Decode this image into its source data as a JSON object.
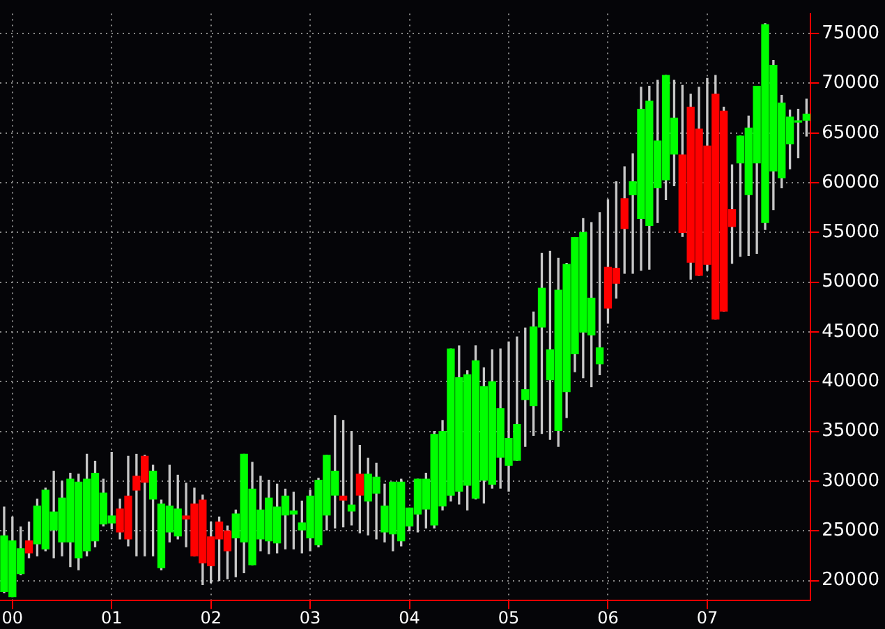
{
  "chart_data": {
    "type": "candlestick",
    "categories": [
      null,
      "00",
      null,
      null,
      null,
      null,
      null,
      null,
      null,
      null,
      null,
      null,
      null,
      "01",
      null,
      null,
      null,
      null,
      null,
      null,
      null,
      null,
      null,
      null,
      null,
      "02",
      null,
      null,
      null,
      null,
      null,
      null,
      null,
      null,
      null,
      null,
      null,
      "03",
      null,
      null,
      null,
      null,
      null,
      null,
      null,
      null,
      null,
      null,
      null,
      "04",
      null,
      null,
      null,
      null,
      null,
      null,
      null,
      null,
      null,
      null,
      null,
      "05",
      null,
      null,
      null,
      null,
      null,
      null,
      null,
      null,
      null,
      null,
      null,
      "06",
      null,
      null,
      null,
      null,
      null,
      null,
      null,
      null,
      null,
      null,
      null,
      "07",
      null,
      null,
      null,
      null,
      null,
      null,
      null,
      null,
      null,
      null,
      null,
      null
    ],
    "ohlc": [
      [
        18900,
        27400,
        18800,
        24500
      ],
      [
        18400,
        26400,
        18400,
        24000
      ],
      [
        20700,
        25400,
        20600,
        23200
      ],
      [
        24000,
        25900,
        22300,
        22800
      ],
      [
        23700,
        28200,
        22500,
        27500
      ],
      [
        23200,
        29300,
        23000,
        29100
      ],
      [
        25100,
        31000,
        22300,
        26900
      ],
      [
        23900,
        30000,
        22500,
        28300
      ],
      [
        23900,
        30800,
        21400,
        30200
      ],
      [
        22300,
        30700,
        21100,
        29900
      ],
      [
        23000,
        32700,
        22500,
        30200
      ],
      [
        24000,
        32000,
        23400,
        30800
      ],
      [
        25700,
        30200,
        25500,
        28800
      ],
      [
        25800,
        32900,
        25200,
        26500
      ],
      [
        27200,
        28200,
        24200,
        24900
      ],
      [
        28500,
        32500,
        23500,
        24200
      ],
      [
        30500,
        32700,
        22500,
        29100
      ],
      [
        32500,
        32600,
        22500,
        29900
      ],
      [
        28200,
        31600,
        22500,
        31000
      ],
      [
        21300,
        28100,
        21100,
        27700
      ],
      [
        24900,
        31600,
        23900,
        27500
      ],
      [
        24500,
        30600,
        24200,
        27200
      ],
      [
        26500,
        29800,
        23400,
        26200
      ],
      [
        27700,
        29300,
        22500,
        22500
      ],
      [
        28100,
        28600,
        19600,
        21800
      ],
      [
        24400,
        25900,
        19800,
        21500
      ],
      [
        25900,
        26400,
        20000,
        24200
      ],
      [
        25000,
        25500,
        20200,
        23000
      ],
      [
        24300,
        27100,
        20400,
        26700
      ],
      [
        23900,
        32700,
        20800,
        32700
      ],
      [
        21600,
        31900,
        21600,
        29200
      ],
      [
        24200,
        30500,
        23000,
        27100
      ],
      [
        24000,
        30100,
        22700,
        28300
      ],
      [
        23800,
        29700,
        22800,
        27400
      ],
      [
        26600,
        29200,
        23200,
        28500
      ],
      [
        26700,
        28900,
        23200,
        27000
      ],
      [
        25100,
        28000,
        22800,
        25800
      ],
      [
        24300,
        29100,
        23000,
        28500
      ],
      [
        23600,
        30300,
        23400,
        30100
      ],
      [
        26600,
        32600,
        25100,
        32600
      ],
      [
        28600,
        36600,
        25300,
        31000
      ],
      [
        28500,
        36100,
        25400,
        28100
      ],
      [
        27000,
        35000,
        25600,
        27600
      ],
      [
        30700,
        33600,
        24800,
        28600
      ],
      [
        28000,
        32300,
        24600,
        30700
      ],
      [
        28800,
        31800,
        24200,
        30400
      ],
      [
        24900,
        29700,
        23900,
        27500
      ],
      [
        24700,
        29900,
        23000,
        29900
      ],
      [
        24000,
        30200,
        23500,
        29900
      ],
      [
        25500,
        27300,
        25000,
        27300
      ],
      [
        26700,
        30200,
        24900,
        30200
      ],
      [
        27200,
        30800,
        25300,
        30200
      ],
      [
        25600,
        35000,
        25300,
        34700
      ],
      [
        27500,
        36100,
        27100,
        35000
      ],
      [
        28600,
        43300,
        28000,
        43300
      ],
      [
        29000,
        43600,
        27700,
        40400
      ],
      [
        29600,
        41100,
        27100,
        40700
      ],
      [
        28300,
        43600,
        28200,
        42100
      ],
      [
        30100,
        41400,
        27800,
        39500
      ],
      [
        29700,
        43200,
        29300,
        40000
      ],
      [
        32400,
        43300,
        29300,
        37300
      ],
      [
        31600,
        44000,
        29000,
        34300
      ],
      [
        32100,
        44500,
        32100,
        35700
      ],
      [
        38200,
        45400,
        33500,
        39200
      ],
      [
        37600,
        47000,
        34600,
        45500
      ],
      [
        45500,
        52900,
        34800,
        49400
      ],
      [
        40200,
        53100,
        34200,
        43200
      ],
      [
        35100,
        52400,
        33500,
        49200
      ],
      [
        39000,
        51900,
        36400,
        51800
      ],
      [
        42800,
        54500,
        41000,
        54500
      ],
      [
        45000,
        56400,
        40400,
        55000
      ],
      [
        44700,
        56000,
        39500,
        48400
      ],
      [
        41800,
        57000,
        40700,
        43400
      ],
      [
        51500,
        58300,
        45900,
        47400
      ],
      [
        51400,
        60100,
        48400,
        49900
      ],
      [
        58400,
        61600,
        50900,
        55400
      ],
      [
        58800,
        62900,
        50900,
        60100
      ],
      [
        56400,
        69600,
        51200,
        67400
      ],
      [
        55700,
        69700,
        51300,
        68200
      ],
      [
        59500,
        70300,
        56000,
        64200
      ],
      [
        60300,
        70800,
        58300,
        70800
      ],
      [
        62900,
        70300,
        59700,
        66500
      ],
      [
        62800,
        69800,
        54600,
        55000
      ],
      [
        67600,
        68900,
        50300,
        52000
      ],
      [
        65400,
        69600,
        50700,
        50700
      ],
      [
        63700,
        70500,
        51200,
        51800
      ],
      [
        68900,
        70800,
        46300,
        46300
      ],
      [
        67200,
        67600,
        47100,
        47100
      ],
      [
        57300,
        61800,
        51900,
        55600
      ],
      [
        62000,
        64700,
        52600,
        64700
      ],
      [
        58800,
        66700,
        52700,
        65500
      ],
      [
        62000,
        69700,
        52900,
        69700
      ],
      [
        56000,
        76000,
        55300,
        75900
      ],
      [
        61200,
        72300,
        57300,
        71800
      ],
      [
        60500,
        68800,
        59500,
        68000
      ],
      [
        63900,
        67300,
        61400,
        66600
      ],
      [
        66100,
        67400,
        62500,
        66200
      ],
      [
        66300,
        68400,
        64700,
        66900
      ]
    ],
    "colors": [
      "#00ff00",
      "#00ff00",
      "#00ff00",
      "#ff0000",
      "#00ff00",
      "#00ff00",
      "#00ff00",
      "#00ff00",
      "#00ff00",
      "#00ff00",
      "#00ff00",
      "#00ff00",
      "#00ff00",
      "#00ff00",
      "#ff0000",
      "#ff0000",
      "#ff0000",
      "#ff0000",
      "#00ff00",
      "#00ff00",
      "#00ff00",
      "#00ff00",
      "#ff0000",
      "#ff0000",
      "#ff0000",
      "#ff0000",
      "#ff0000",
      "#ff0000",
      "#00ff00",
      "#00ff00",
      "#00ff00",
      "#00ff00",
      "#00ff00",
      "#00ff00",
      "#00ff00",
      "#00ff00",
      "#00ff00",
      "#00ff00",
      "#00ff00",
      "#00ff00",
      "#00ff00",
      "#ff0000",
      "#00ff00",
      "#ff0000",
      "#00ff00",
      "#00ff00",
      "#00ff00",
      "#00ff00",
      "#00ff00",
      "#00ff00",
      "#00ff00",
      "#00ff00",
      "#00ff00",
      "#00ff00",
      "#00ff00",
      "#00ff00",
      "#00ff00",
      "#00ff00",
      "#00ff00",
      "#00ff00",
      "#00ff00",
      "#00ff00",
      "#00ff00",
      "#00ff00",
      "#00ff00",
      "#00ff00",
      "#00ff00",
      "#00ff00",
      "#00ff00",
      "#00ff00",
      "#00ff00",
      "#00ff00",
      "#00ff00",
      "#ff0000",
      "#ff0000",
      "#ff0000",
      "#00ff00",
      "#00ff00",
      "#00ff00",
      "#00ff00",
      "#00ff00",
      "#00ff00",
      "#ff0000",
      "#ff0000",
      "#ff0000",
      "#ff0000",
      "#ff0000",
      "#ff0000",
      "#ff0000",
      "#00ff00",
      "#00ff00",
      "#00ff00",
      "#00ff00",
      "#00ff00",
      "#00ff00",
      "#00ff00",
      "#00ff00",
      "#00ff00"
    ],
    "ylim": [
      18000,
      77000
    ],
    "yticks": [
      20000,
      25000,
      30000,
      35000,
      40000,
      45000,
      50000,
      55000,
      60000,
      65000,
      70000,
      75000
    ],
    "grid": true
  }
}
